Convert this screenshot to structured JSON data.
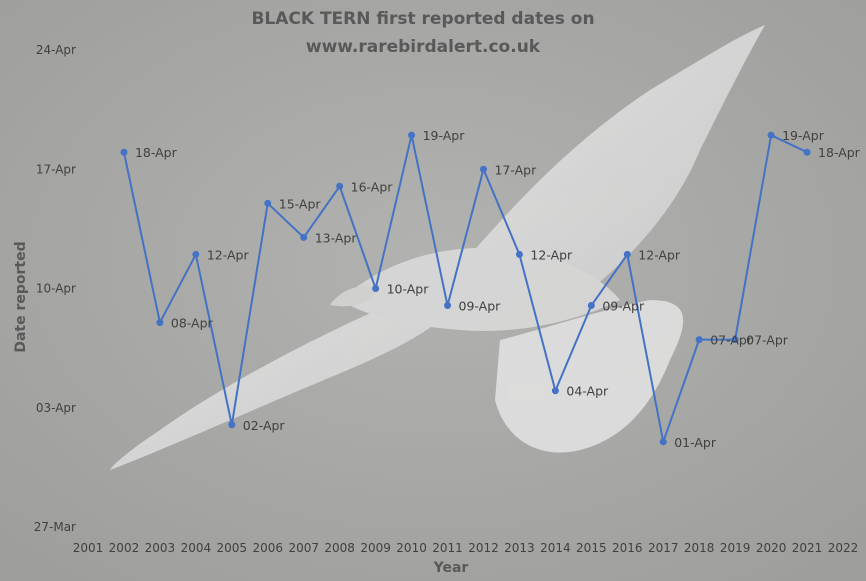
{
  "chart_data": {
    "type": "line",
    "title": "BLACK TERN first reported dates on",
    "subtitle": "www.rarebirdalert.co.uk",
    "xlabel": "Year",
    "ylabel": "Date reported",
    "xlim": [
      2001,
      2022
    ],
    "x_ticks": [
      "2001",
      "2002",
      "2003",
      "2004",
      "2005",
      "2006",
      "2007",
      "2008",
      "2009",
      "2010",
      "2011",
      "2012",
      "2013",
      "2014",
      "2015",
      "2016",
      "2017",
      "2018",
      "2019",
      "2020",
      "2021",
      "2022"
    ],
    "ylim": [
      "27-Mar",
      "24-Apr"
    ],
    "y_ticks": [
      "27-Mar",
      "03-Apr",
      "10-Apr",
      "17-Apr",
      "24-Apr"
    ],
    "grid": false,
    "legend": "none",
    "series": [
      {
        "color": "#4472C4",
        "x": [
          2002,
          2003,
          2004,
          2005,
          2006,
          2007,
          2008,
          2009,
          2010,
          2011,
          2012,
          2013,
          2014,
          2015,
          2016,
          2017,
          2018,
          2019,
          2020,
          2021
        ],
        "y": [
          "18-Apr",
          "08-Apr",
          "12-Apr",
          "02-Apr",
          "15-Apr",
          "13-Apr",
          "16-Apr",
          "10-Apr",
          "19-Apr",
          "09-Apr",
          "17-Apr",
          "12-Apr",
          "04-Apr",
          "09-Apr",
          "12-Apr",
          "01-Apr",
          "07-Apr",
          "07-Apr",
          "19-Apr",
          "18-Apr"
        ],
        "labels": [
          "18-Apr",
          "08-Apr",
          "12-Apr",
          "02-Apr",
          "15-Apr",
          "13-Apr",
          "16-Apr",
          "10-Apr",
          "19-Apr",
          "09-Apr",
          "17-Apr",
          "12-Apr",
          "04-Apr",
          "09-Apr",
          "12-Apr",
          "01-Apr",
          "07-Apr",
          "07-Apr",
          "19-Apr",
          "18-Apr"
        ]
      }
    ],
    "background": "photo of a tern in flight (grey)"
  }
}
